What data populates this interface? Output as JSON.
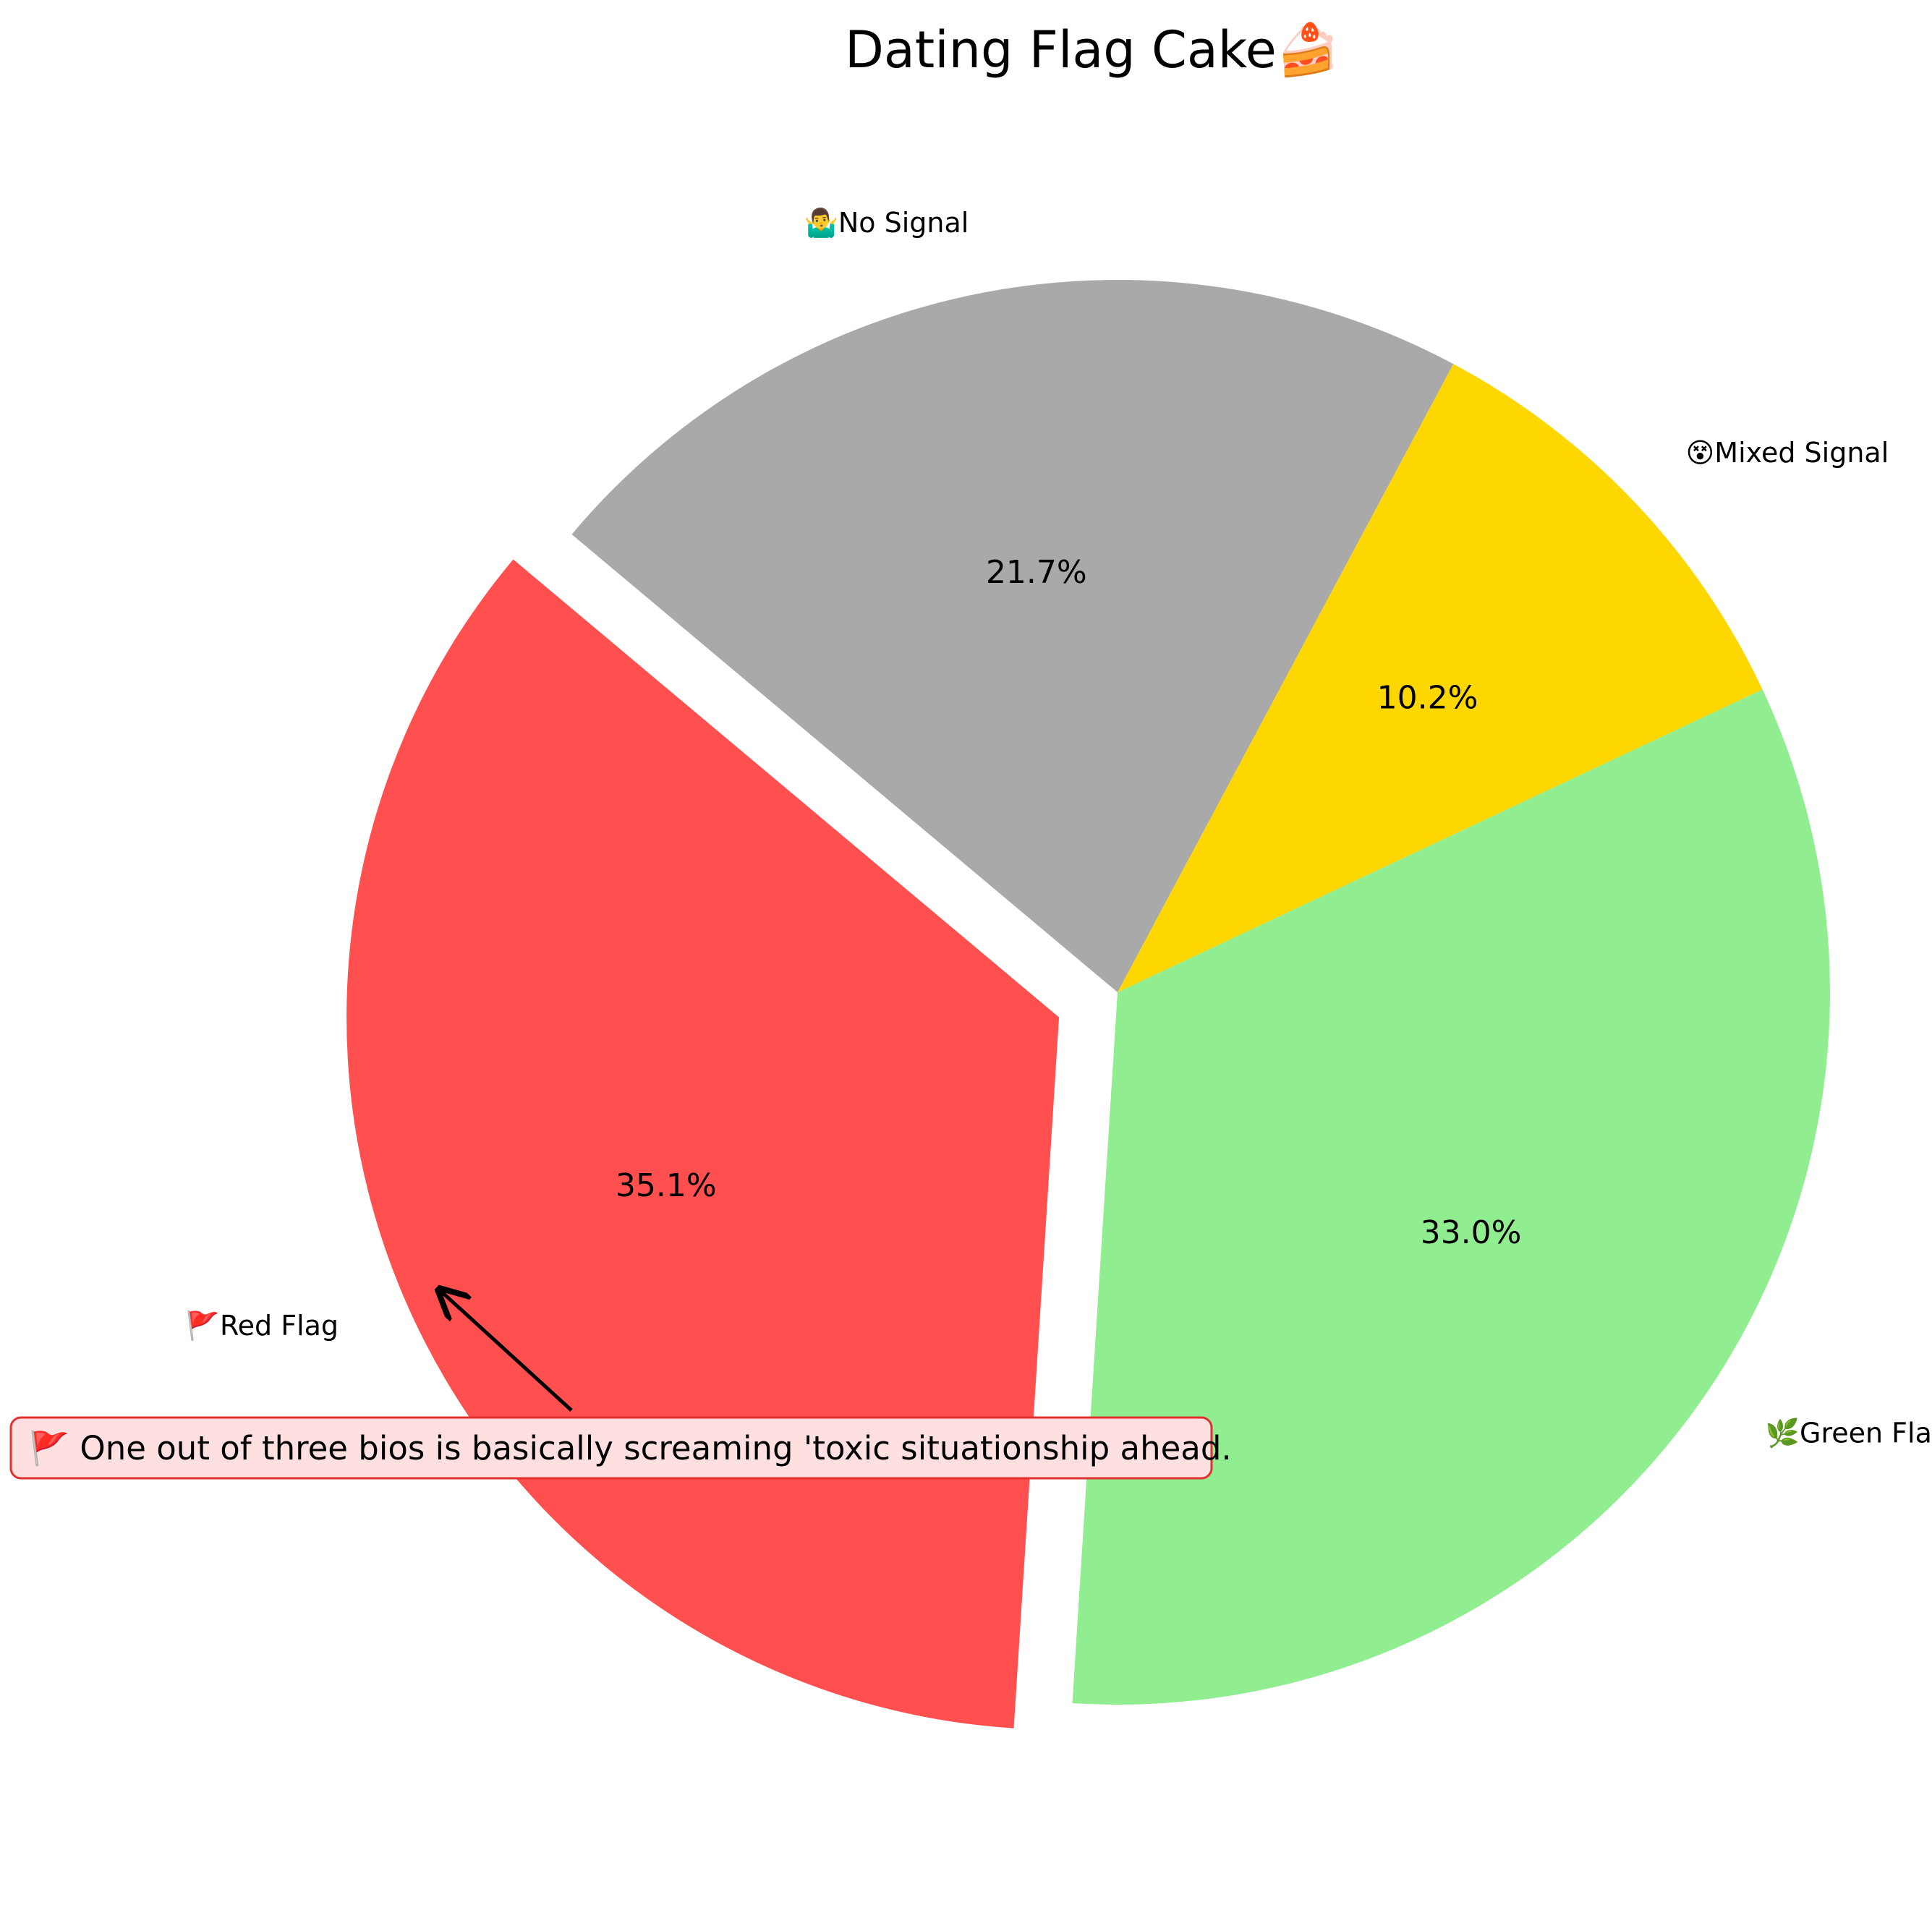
{
  "chart_data": {
    "type": "pie",
    "title": "Dating Flag Cake🍰",
    "categories": [
      "🚩Red Flag",
      "🌿Green Flag",
      "😵Mixed Signal",
      "🤷‍♂️No Signal"
    ],
    "values": [
      35.1,
      33.0,
      10.2,
      21.7
    ],
    "percent_labels": [
      "35.1%",
      "33.0%",
      "10.2%",
      "21.7%"
    ],
    "colors": [
      "#ff4f4f",
      "#90ee90",
      "#ffd700",
      "#a9a9a9"
    ],
    "start_angle_deg": 140,
    "direction": "counterclockwise",
    "exploded_slice": "🚩Red Flag",
    "annotation": {
      "text": "🚩 One out of three bios is basically screaming 'toxic situationship ahead.",
      "target_slice": "🚩Red Flag",
      "box_edge_color": "#e03030",
      "box_fill_color": "#ffe0e0"
    }
  }
}
